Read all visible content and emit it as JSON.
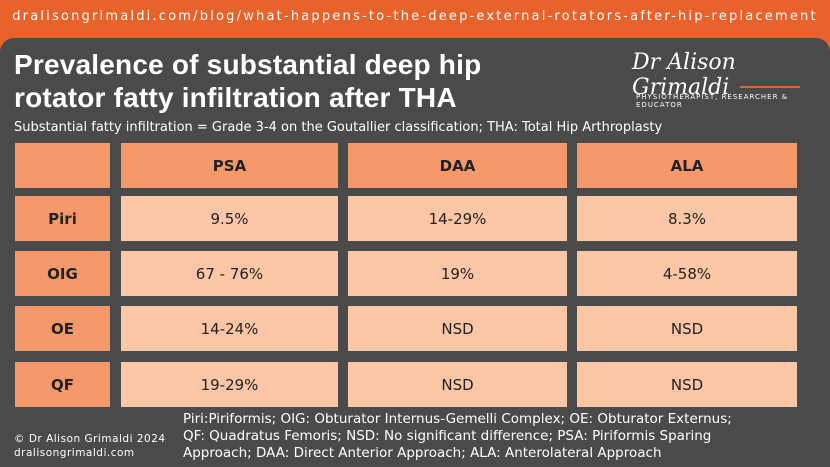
{
  "header": {
    "url": "dralisongrimaldi.com/blog/what-happens-to-the-deep-external-rotators-after-hip-replacement",
    "title_lines": [
      "Prevalence of substantial deep hip",
      "rotator fatty infiltration after THA"
    ],
    "subtitle": "Substantial fatty infiltration = Grade 3-4 on the Goutallier classification; THA: Total Hip Arthroplasty",
    "logo_name": "Dr Alison Grimaldi",
    "logo_tagline": "PHYSIOTHERAPIST, RESEARCHER & EDUCATOR"
  },
  "table": {
    "columns": [
      "PSA",
      "DAA",
      "ALA"
    ],
    "rows": [
      {
        "label": "Piri",
        "cells": [
          "9.5%",
          "14-29%",
          "8.3%"
        ]
      },
      {
        "label": "OIG",
        "cells": [
          "67 - 76%",
          "19%",
          "4-58%"
        ]
      },
      {
        "label": "OE",
        "cells": [
          "14-24%",
          "NSD",
          "NSD"
        ]
      },
      {
        "label": "QF",
        "cells": [
          "19-29%",
          "NSD",
          "NSD"
        ]
      }
    ]
  },
  "footnote_lines": [
    "Piri:Piriformis; OIG: Obturator Internus-Gemelli Complex; OE: Obturator Externus;",
    "QF: Quadratus Femoris; NSD: No significant difference; PSA: Piriformis Sparing",
    "Approach; DAA: Direct Anterior Approach; ALA: Anterolateral Approach"
  ],
  "copyright_lines": [
    "© Dr Alison Grimaldi 2024",
    "dralisongrimaldi.com"
  ]
}
